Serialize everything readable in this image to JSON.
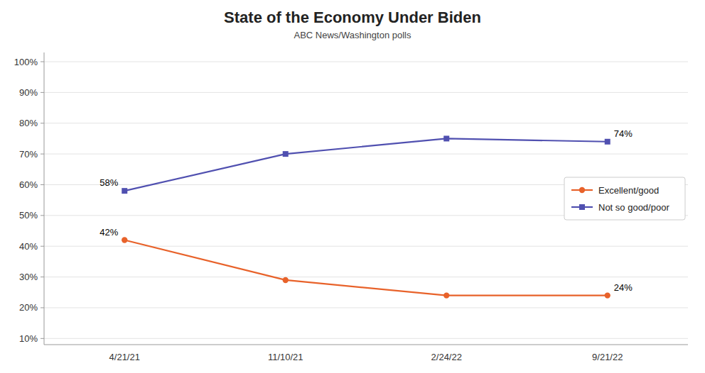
{
  "chart_data": {
    "type": "line",
    "title": "State of the Economy Under Biden",
    "subtitle": "ABC News/Washington polls",
    "categories": [
      "4/21/21",
      "11/10/21",
      "2/24/22",
      "9/21/22"
    ],
    "series": [
      {
        "name": "Excellent/good",
        "color": "#E8622A",
        "marker": "circle",
        "values": [
          42,
          29,
          24,
          24
        ]
      },
      {
        "name": "Not so good/poor",
        "color": "#5050B0",
        "marker": "square",
        "values": [
          58,
          70,
          75,
          74
        ]
      }
    ],
    "annotations": [
      {
        "text": "42%",
        "x": "4/21/21",
        "y": 42
      },
      {
        "text": "24%",
        "x": "9/21/22",
        "y": 24
      },
      {
        "text": "58%",
        "x": "4/21/21",
        "y": 58
      },
      {
        "text": "74%",
        "x": "9/21/22",
        "y": 74
      }
    ],
    "ylim": [
      8,
      103
    ],
    "yticks": [
      {
        "value": 10,
        "label": "10%"
      },
      {
        "value": 20,
        "label": "20%"
      },
      {
        "value": 30,
        "label": "30%"
      },
      {
        "value": 40,
        "label": "40%"
      },
      {
        "value": 50,
        "label": "50%"
      },
      {
        "value": 60,
        "label": "60%"
      },
      {
        "value": 70,
        "label": "70%"
      },
      {
        "value": 80,
        "label": "80%"
      },
      {
        "value": 90,
        "label": "90%"
      },
      {
        "value": 100,
        "label": "100%"
      }
    ],
    "grid": true,
    "legend": "right"
  }
}
